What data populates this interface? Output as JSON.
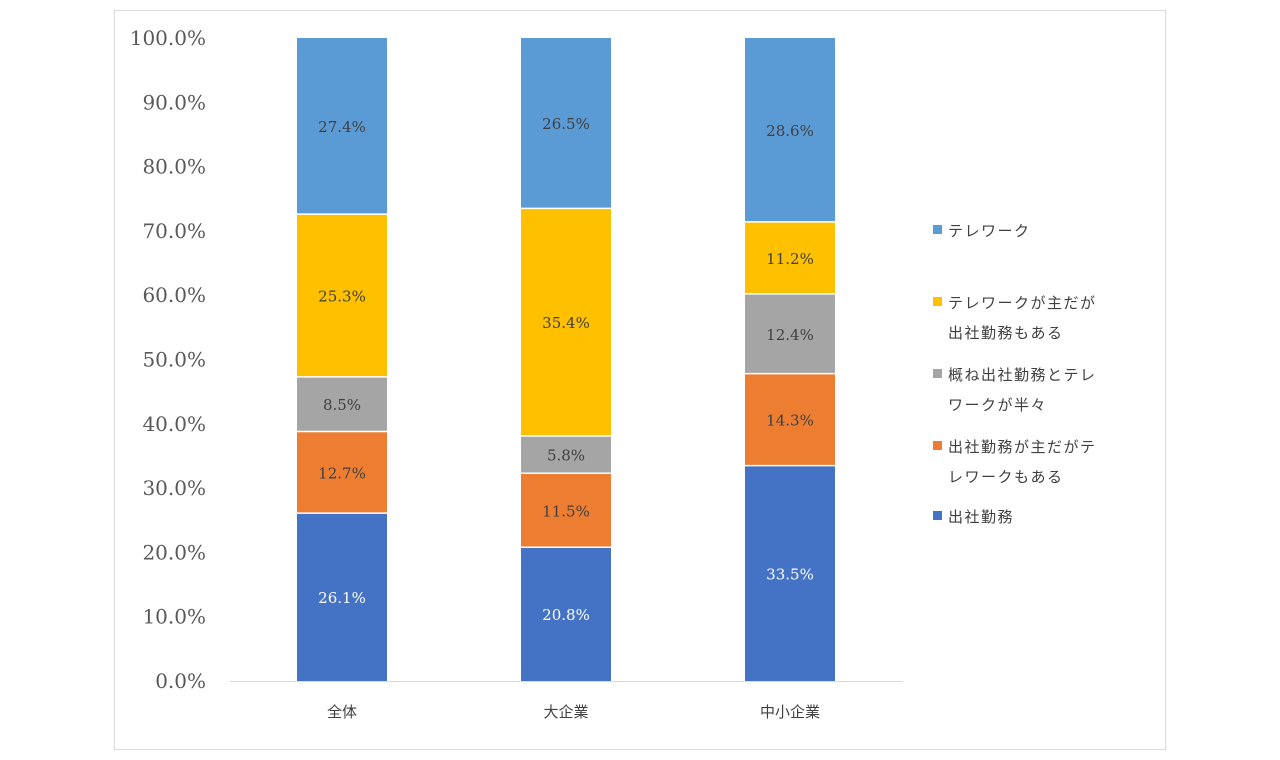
{
  "chart_data": {
    "type": "bar",
    "stacked": true,
    "title": "",
    "xlabel": "",
    "ylabel": "",
    "ylim": [
      0,
      100
    ],
    "yticks": [
      "0.0%",
      "10.0%",
      "20.0%",
      "30.0%",
      "40.0%",
      "50.0%",
      "60.0%",
      "70.0%",
      "80.0%",
      "90.0%",
      "100.0%"
    ],
    "categories": [
      "全体",
      "大企業",
      "中小企業"
    ],
    "grid": false,
    "legend_position": "right",
    "series": [
      {
        "name": "出社勤務",
        "color": "#4472c4",
        "label_color": "#ffffff",
        "values": [
          26.1,
          20.8,
          33.5
        ],
        "labels": [
          "26.1%",
          "20.8%",
          "33.5%"
        ]
      },
      {
        "name": "出社勤務が主だがテレワークもある",
        "color": "#ed7d31",
        "label_color": "#404040",
        "values": [
          12.7,
          11.5,
          14.3
        ],
        "labels": [
          "12.7%",
          "11.5%",
          "14.3%"
        ]
      },
      {
        "name": "概ね出社勤務とテレワークが半々",
        "color": "#a5a5a5",
        "label_color": "#404040",
        "values": [
          8.5,
          5.8,
          12.4
        ],
        "labels": [
          "8.5%",
          "5.8%",
          "12.4%"
        ]
      },
      {
        "name": "テレワークが主だが出社勤務もある",
        "color": "#ffc000",
        "label_color": "#404040",
        "values": [
          25.3,
          35.4,
          11.2
        ],
        "labels": [
          "25.3%",
          "35.4%",
          "11.2%"
        ]
      },
      {
        "name": "テレワーク",
        "color": "#5b9bd5",
        "label_color": "#404040",
        "values": [
          27.4,
          26.5,
          28.6
        ],
        "labels": [
          "27.4%",
          "26.5%",
          "28.6%"
        ]
      }
    ]
  },
  "legend": {
    "items": [
      {
        "text": "テレワーク",
        "color": "#5b9bd5"
      },
      {
        "text": "テレワークが主だが\n出社勤務もある",
        "color": "#ffc000"
      },
      {
        "text": "概ね出社勤務とテレ\nワークが半々",
        "color": "#a5a5a5"
      },
      {
        "text": "出社勤務が主だがテ\nレワークもある",
        "color": "#ed7d31"
      },
      {
        "text": "出社勤務",
        "color": "#4472c4"
      }
    ]
  }
}
